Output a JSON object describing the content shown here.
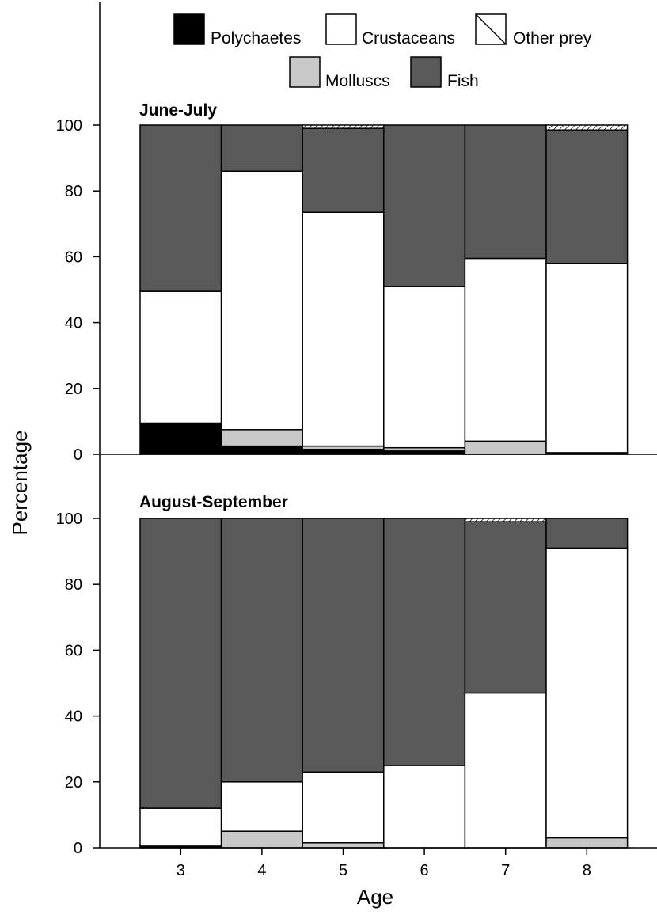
{
  "legend": {
    "items": [
      {
        "key": "polychaetes",
        "label": "Polychaetes"
      },
      {
        "key": "crustaceans",
        "label": "Crustaceans"
      },
      {
        "key": "other",
        "label": "Other prey"
      },
      {
        "key": "molluscs",
        "label": "Molluscs"
      },
      {
        "key": "fish",
        "label": "Fish"
      }
    ]
  },
  "colors": {
    "polychaetes": "#000000",
    "molluscs": "#c8c8c8",
    "crustaceans": "#ffffff",
    "fish": "#595959",
    "other": "hatched"
  },
  "axes": {
    "xlabel": "Age",
    "ylabel": "Percentage",
    "yticks": [
      "0",
      "20",
      "40",
      "60",
      "80",
      "100"
    ],
    "xticks": [
      "3",
      "4",
      "5",
      "6",
      "7",
      "8"
    ]
  },
  "chart_data": [
    {
      "type": "bar",
      "stacked": true,
      "title": "June-July",
      "xlabel": "Age",
      "ylabel": "Percentage",
      "ylim": [
        0,
        100
      ],
      "categories": [
        "3",
        "4",
        "5",
        "6",
        "7",
        "8"
      ],
      "series": [
        {
          "name": "Polychaetes",
          "values": [
            9.5,
            2.5,
            1.5,
            1.0,
            0.0,
            0.5
          ]
        },
        {
          "name": "Molluscs",
          "values": [
            0.0,
            5.0,
            1.0,
            1.0,
            4.0,
            0.0
          ]
        },
        {
          "name": "Crustaceans",
          "values": [
            40.0,
            78.5,
            71.0,
            49.0,
            55.5,
            57.5
          ]
        },
        {
          "name": "Fish",
          "values": [
            50.5,
            14.0,
            25.5,
            49.0,
            40.5,
            40.5
          ]
        },
        {
          "name": "Other prey",
          "values": [
            0.0,
            0.0,
            1.0,
            0.0,
            0.0,
            1.5
          ]
        }
      ]
    },
    {
      "type": "bar",
      "stacked": true,
      "title": "August-September",
      "xlabel": "Age",
      "ylabel": "Percentage",
      "ylim": [
        0,
        100
      ],
      "categories": [
        "3",
        "4",
        "5",
        "6",
        "7",
        "8"
      ],
      "series": [
        {
          "name": "Polychaetes",
          "values": [
            0.5,
            0.0,
            0.0,
            0.0,
            0.0,
            0.0
          ]
        },
        {
          "name": "Molluscs",
          "values": [
            0.0,
            5.0,
            1.5,
            0.0,
            0.0,
            3.0
          ]
        },
        {
          "name": "Crustaceans",
          "values": [
            11.5,
            15.0,
            21.5,
            25.0,
            47.0,
            88.0
          ]
        },
        {
          "name": "Fish",
          "values": [
            88.0,
            80.0,
            77.0,
            75.0,
            52.0,
            9.0
          ]
        },
        {
          "name": "Other prey",
          "values": [
            0.0,
            0.0,
            0.0,
            0.0,
            1.0,
            0.0
          ]
        }
      ]
    }
  ]
}
